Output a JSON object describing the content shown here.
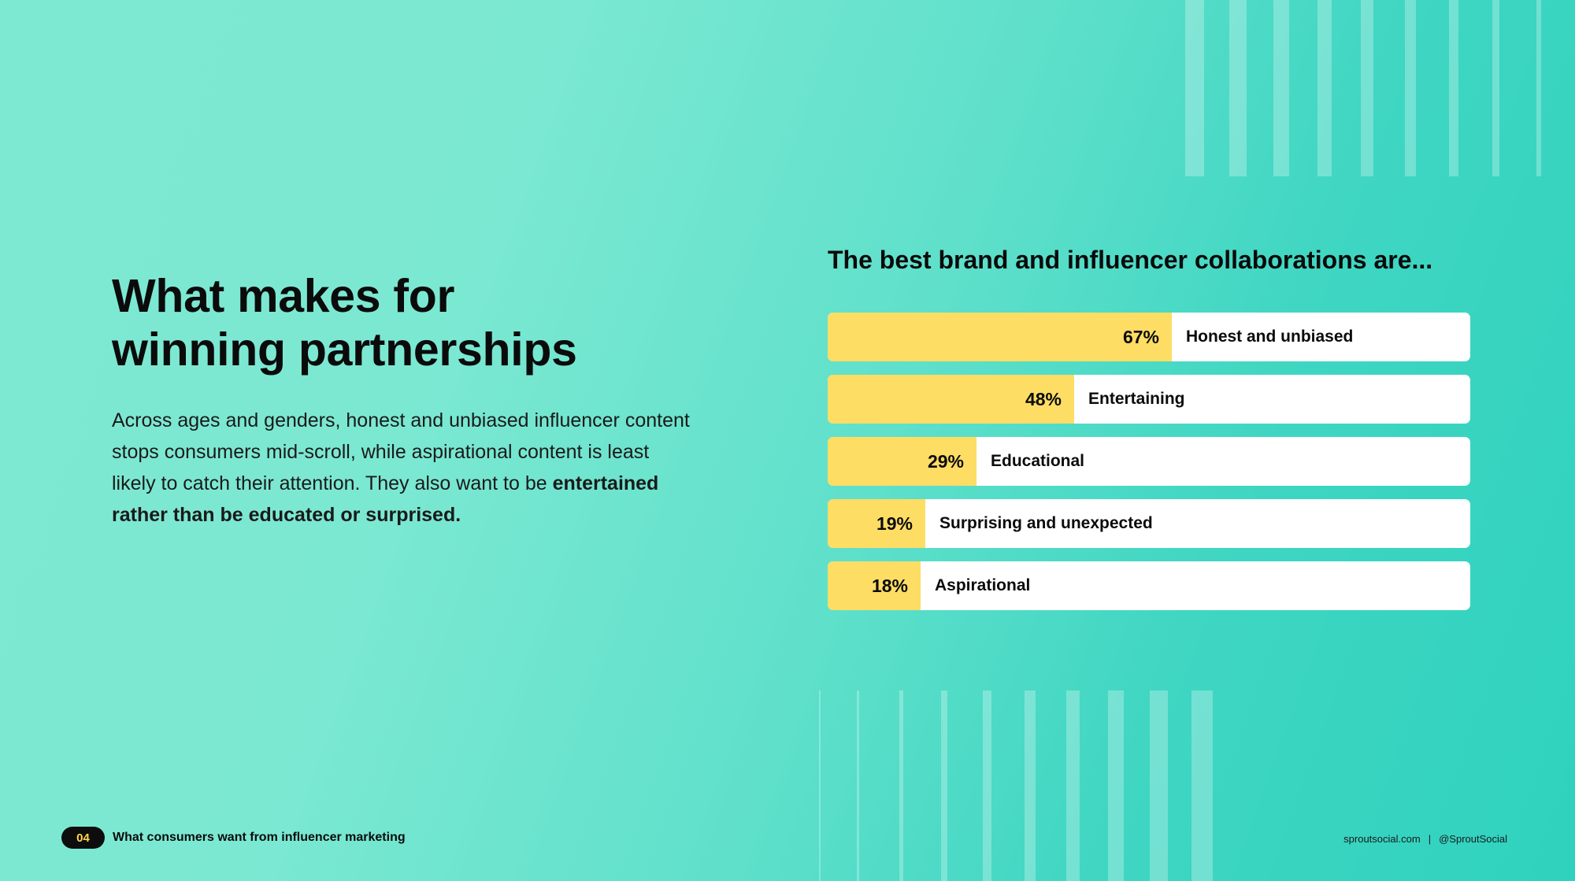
{
  "heading": {
    "line1": "What makes for",
    "line2": "winning partnerships"
  },
  "body": {
    "text": "Across ages and genders, honest and unbiased influencer content stops consumers mid-scroll, while aspirational content is least likely to catch their attention. They also want to be ",
    "bold": "entertained rather than be educated or surprised."
  },
  "chart_data": {
    "type": "bar",
    "orientation": "horizontal",
    "title": "The best brand and influencer collaborations are...",
    "categories": [
      "Honest and unbiased",
      "Entertaining",
      "Educational",
      "Surprising and unexpected",
      "Aspirational"
    ],
    "values": [
      67,
      48,
      29,
      19,
      18
    ],
    "value_labels": [
      "67%",
      "48%",
      "29%",
      "19%",
      "18%"
    ],
    "unit": "%",
    "xlim": [
      0,
      125
    ],
    "grid": false,
    "colors": {
      "bar": "#fedd65",
      "track": "#ffffff"
    }
  },
  "footer": {
    "page_number": "04",
    "section_title": "What consumers want from influencer marketing",
    "website": "sproutsocial.com",
    "separator": "|",
    "handle": "@SproutSocial"
  },
  "colors": {
    "background_start": "#7ee9d3",
    "background_end": "#2fd2be",
    "bar_fill": "#fedd65",
    "page_badge_bg": "#0d0d0d",
    "page_badge_text": "#ffd54f"
  }
}
